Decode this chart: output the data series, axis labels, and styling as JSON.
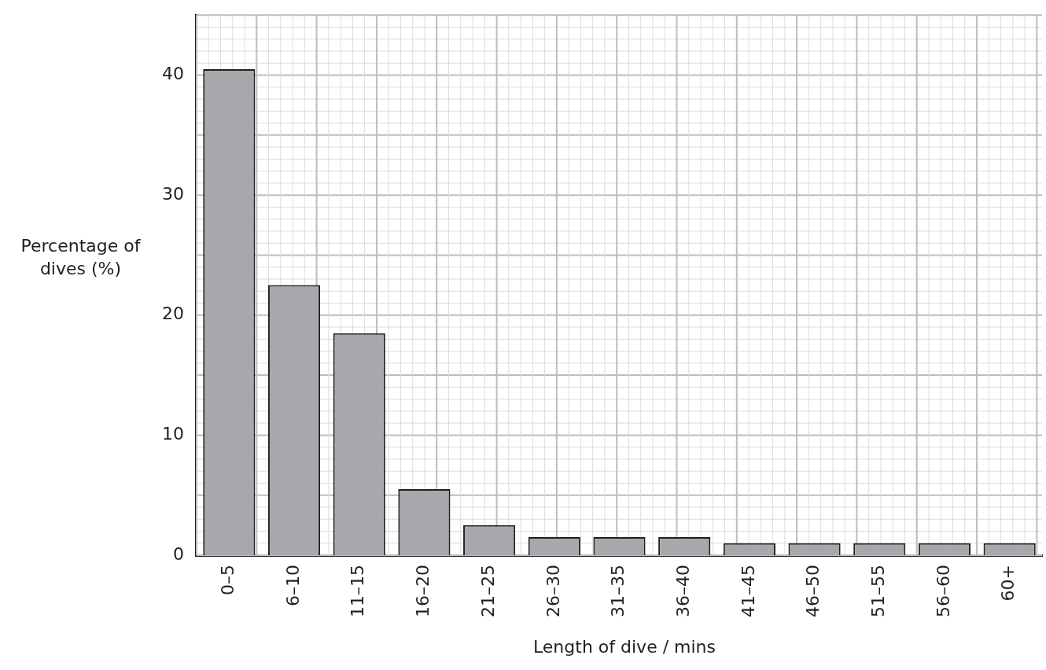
{
  "chart_data": {
    "type": "bar",
    "xlabel": "Length of dive / mins",
    "ylabel": "Percentage of dives (%)",
    "categories": [
      "0–5",
      "6–10",
      "11–15",
      "16–20",
      "21–25",
      "26–30",
      "31–35",
      "36–40",
      "41–45",
      "46–50",
      "51–55",
      "56–60",
      "60+"
    ],
    "values": [
      40.5,
      22.5,
      18.5,
      5.5,
      2.5,
      1.5,
      1.5,
      1.5,
      1,
      1,
      1,
      1,
      1
    ],
    "color": "#a7a8ab",
    "ylim": [
      0,
      45
    ],
    "yticks": [
      0,
      10,
      20,
      30,
      40
    ],
    "grid": true,
    "legend": false
  }
}
